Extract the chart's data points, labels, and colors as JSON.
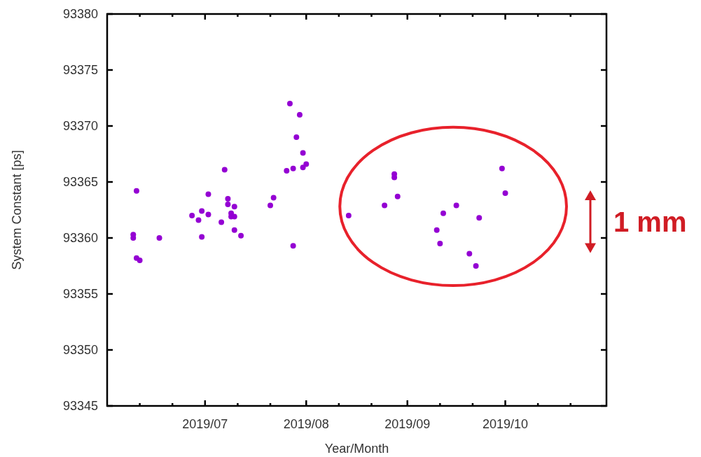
{
  "chart_data": {
    "type": "scatter",
    "xlabel": "Year/Month",
    "ylabel": "System Constant [ps]",
    "annotations": [
      "1 mm"
    ],
    "xlim": [
      "2019-06-01",
      "2019-11-01"
    ],
    "xticks": [
      {
        "value": "2019-06-11",
        "label": null
      },
      {
        "value": "2019-06-21",
        "label": null
      },
      {
        "value": "2019-07-01",
        "label": "2019/07"
      },
      {
        "value": "2019-07-11",
        "label": null
      },
      {
        "value": "2019-07-21",
        "label": null
      },
      {
        "value": "2019-08-01",
        "label": "2019/08"
      },
      {
        "value": "2019-08-11",
        "label": null
      },
      {
        "value": "2019-08-21",
        "label": null
      },
      {
        "value": "2019-09-01",
        "label": "2019/09"
      },
      {
        "value": "2019-09-11",
        "label": null
      },
      {
        "value": "2019-09-21",
        "label": null
      },
      {
        "value": "2019-10-01",
        "label": "2019/10"
      },
      {
        "value": "2019-10-11",
        "label": null
      },
      {
        "value": "2019-10-21",
        "label": null
      }
    ],
    "ylim": [
      93345,
      93380
    ],
    "yticks": [
      93345,
      93350,
      93355,
      93360,
      93365,
      93370,
      93375,
      93380
    ],
    "marker": "circle",
    "grid": false,
    "series": [
      {
        "color": "#9400d3",
        "x": [
          "2019-06-10",
          "2019-06-09",
          "2019-06-09",
          "2019-06-10",
          "2019-06-11",
          "2019-06-17",
          "2019-06-27",
          "2019-06-29",
          "2019-06-30",
          "2019-06-30",
          "2019-07-02",
          "2019-07-02",
          "2019-07-06",
          "2019-07-07",
          "2019-07-08",
          "2019-07-08",
          "2019-07-10",
          "2019-07-09",
          "2019-07-09",
          "2019-07-10",
          "2019-07-10",
          "2019-07-12",
          "2019-07-21",
          "2019-07-22",
          "2019-07-26",
          "2019-07-28",
          "2019-07-28",
          "2019-07-27",
          "2019-07-30",
          "2019-07-29",
          "2019-07-31",
          "2019-08-01",
          "2019-07-31",
          "2019-08-14",
          "2019-08-25",
          "2019-08-28",
          "2019-08-28",
          "2019-08-29",
          "2019-09-10",
          "2019-09-11",
          "2019-09-12",
          "2019-09-16",
          "2019-09-20",
          "2019-09-22",
          "2019-09-23",
          "2019-09-30",
          "2019-10-01"
        ],
        "values": [
          93364.2,
          93360.3,
          93360.0,
          93358.2,
          93358.0,
          93360.0,
          93362.0,
          93361.6,
          93362.4,
          93360.1,
          93363.9,
          93362.1,
          93361.4,
          93366.1,
          93363.5,
          93363.0,
          93362.8,
          93362.2,
          93361.9,
          93361.9,
          93360.7,
          93360.2,
          93362.9,
          93363.6,
          93366.0,
          93366.2,
          93359.3,
          93372.0,
          93371.0,
          93369.0,
          93367.6,
          93366.6,
          93366.3,
          93362.0,
          93362.9,
          93365.7,
          93365.4,
          93363.7,
          93360.7,
          93359.5,
          93362.2,
          93362.9,
          93358.6,
          93357.5,
          93361.8,
          93366.2,
          93364.0
        ]
      }
    ]
  }
}
